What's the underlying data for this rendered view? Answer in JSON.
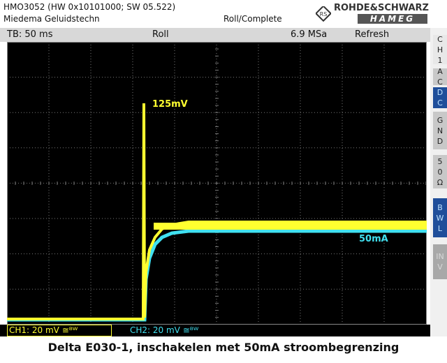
{
  "header": {
    "instrument": "HMO3052 (HW 0x10101000; SW 05.522)",
    "owner": "Miedema Geluidstechn",
    "mode": "Roll/Complete",
    "brand": "ROHDE&SCHWARZ",
    "sub_brand": "HAMEG"
  },
  "status": {
    "timebase": "TB: 50 ms",
    "acquisition": "Roll",
    "sample_rate": "6.9 MSa",
    "refresh": "Refresh"
  },
  "side_panel": {
    "channel": "CH1",
    "buttons": [
      "AC",
      "DC",
      "GND",
      "50 Ω",
      "BWL",
      "INV"
    ]
  },
  "annotations": [
    "125mV",
    "50mA"
  ],
  "channels": [
    "CH1: 20 mV ≅ᴮᵂ",
    "CH2: 20 mV ≅ᴮᵂ"
  ],
  "caption": "Delta E030-1, inschakelen met 50mA stroombegrenzing"
}
